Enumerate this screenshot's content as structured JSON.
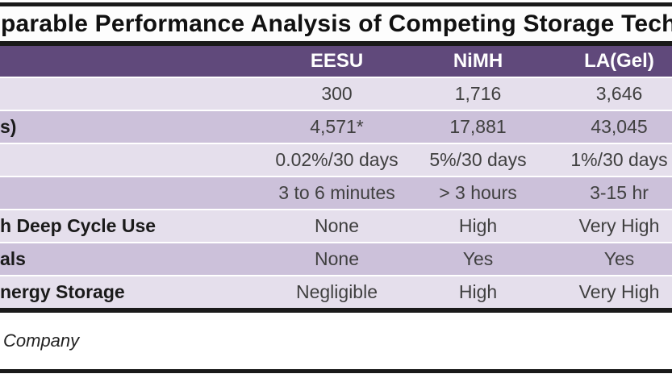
{
  "title": "parable Performance Analysis of Competing Storage Tech",
  "table": {
    "corner_label": "",
    "columns": [
      "EESU",
      "NiMH",
      "LA(Gel)"
    ],
    "rows": [
      {
        "label": "",
        "values": [
          "300",
          "1,716",
          "3,646"
        ]
      },
      {
        "label": "s)",
        "values": [
          "4,571*",
          "17,881",
          "43,045"
        ]
      },
      {
        "label": "",
        "values": [
          "0.02%/30 days",
          "5%/30 days",
          "1%/30 days"
        ]
      },
      {
        "label": "",
        "values": [
          "3 to 6 minutes",
          "> 3 hours",
          "3-15 hr"
        ]
      },
      {
        "label": "h Deep Cycle Use",
        "values": [
          "None",
          "High",
          "Very High"
        ]
      },
      {
        "label": "als",
        "values": [
          "None",
          "Yes",
          "Yes"
        ]
      },
      {
        "label": "nergy Storage",
        "values": [
          "Negligible",
          "High",
          "Very High"
        ]
      }
    ]
  },
  "footer": {
    "source": "Company"
  },
  "colors": {
    "header_bg": "#60497B",
    "header_text": "#FFFFFF",
    "row_light": "#E5DFEC",
    "row_banded": "#CCC1DA",
    "border_line": "#1A1A1A",
    "data_text": "#404040",
    "label_text": "#1A1A1A"
  },
  "chart_data": {
    "type": "table",
    "title": "parable Performance Analysis of Competing Storage Tech",
    "columns": [
      "",
      "EESU",
      "NiMH",
      "LA(Gel)"
    ],
    "rows": [
      [
        "",
        "300",
        "1,716",
        "3,646"
      ],
      [
        "s)",
        "4,571*",
        "17,881",
        "43,045"
      ],
      [
        "",
        "0.02%/30 days",
        "5%/30 days",
        "1%/30 days"
      ],
      [
        "",
        "3 to 6 minutes",
        "> 3 hours",
        "3-15 hr"
      ],
      [
        "h Deep Cycle Use",
        "None",
        "High",
        "Very High"
      ],
      [
        "als",
        "None",
        "Yes",
        "Yes"
      ],
      [
        "nergy Storage",
        "Negligible",
        "High",
        "Very High"
      ]
    ],
    "note": "Company",
    "layout": {
      "banded_rows": true,
      "legend_position": "none",
      "grid": false
    }
  }
}
